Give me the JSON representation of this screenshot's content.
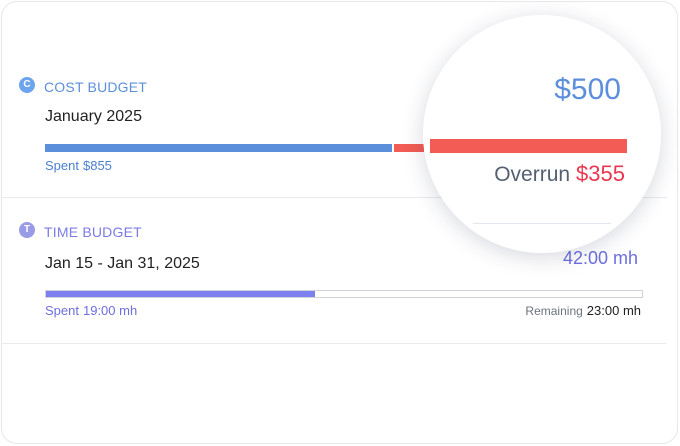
{
  "cost_budget": {
    "badge": "C",
    "title": "COST BUDGET",
    "period": "January 2025",
    "total": "$500",
    "spent_label": "Spent",
    "spent_value": "$855",
    "overrun_label": "Overrun",
    "overrun_value": "$355",
    "colors": {
      "spent": "#5b8fdc",
      "overrun": "#f25c54"
    }
  },
  "time_budget": {
    "badge": "T",
    "title": "TIME BUDGET",
    "period": "Jan 15 - Jan 31, 2025",
    "total": "42:00 mh",
    "spent_label": "Spent",
    "spent_value": "19:00 mh",
    "remaining_label": "Remaining",
    "remaining_value": "23:00 mh",
    "progress_fraction": 0.452,
    "colors": {
      "fill": "#7b7ff0"
    }
  }
}
